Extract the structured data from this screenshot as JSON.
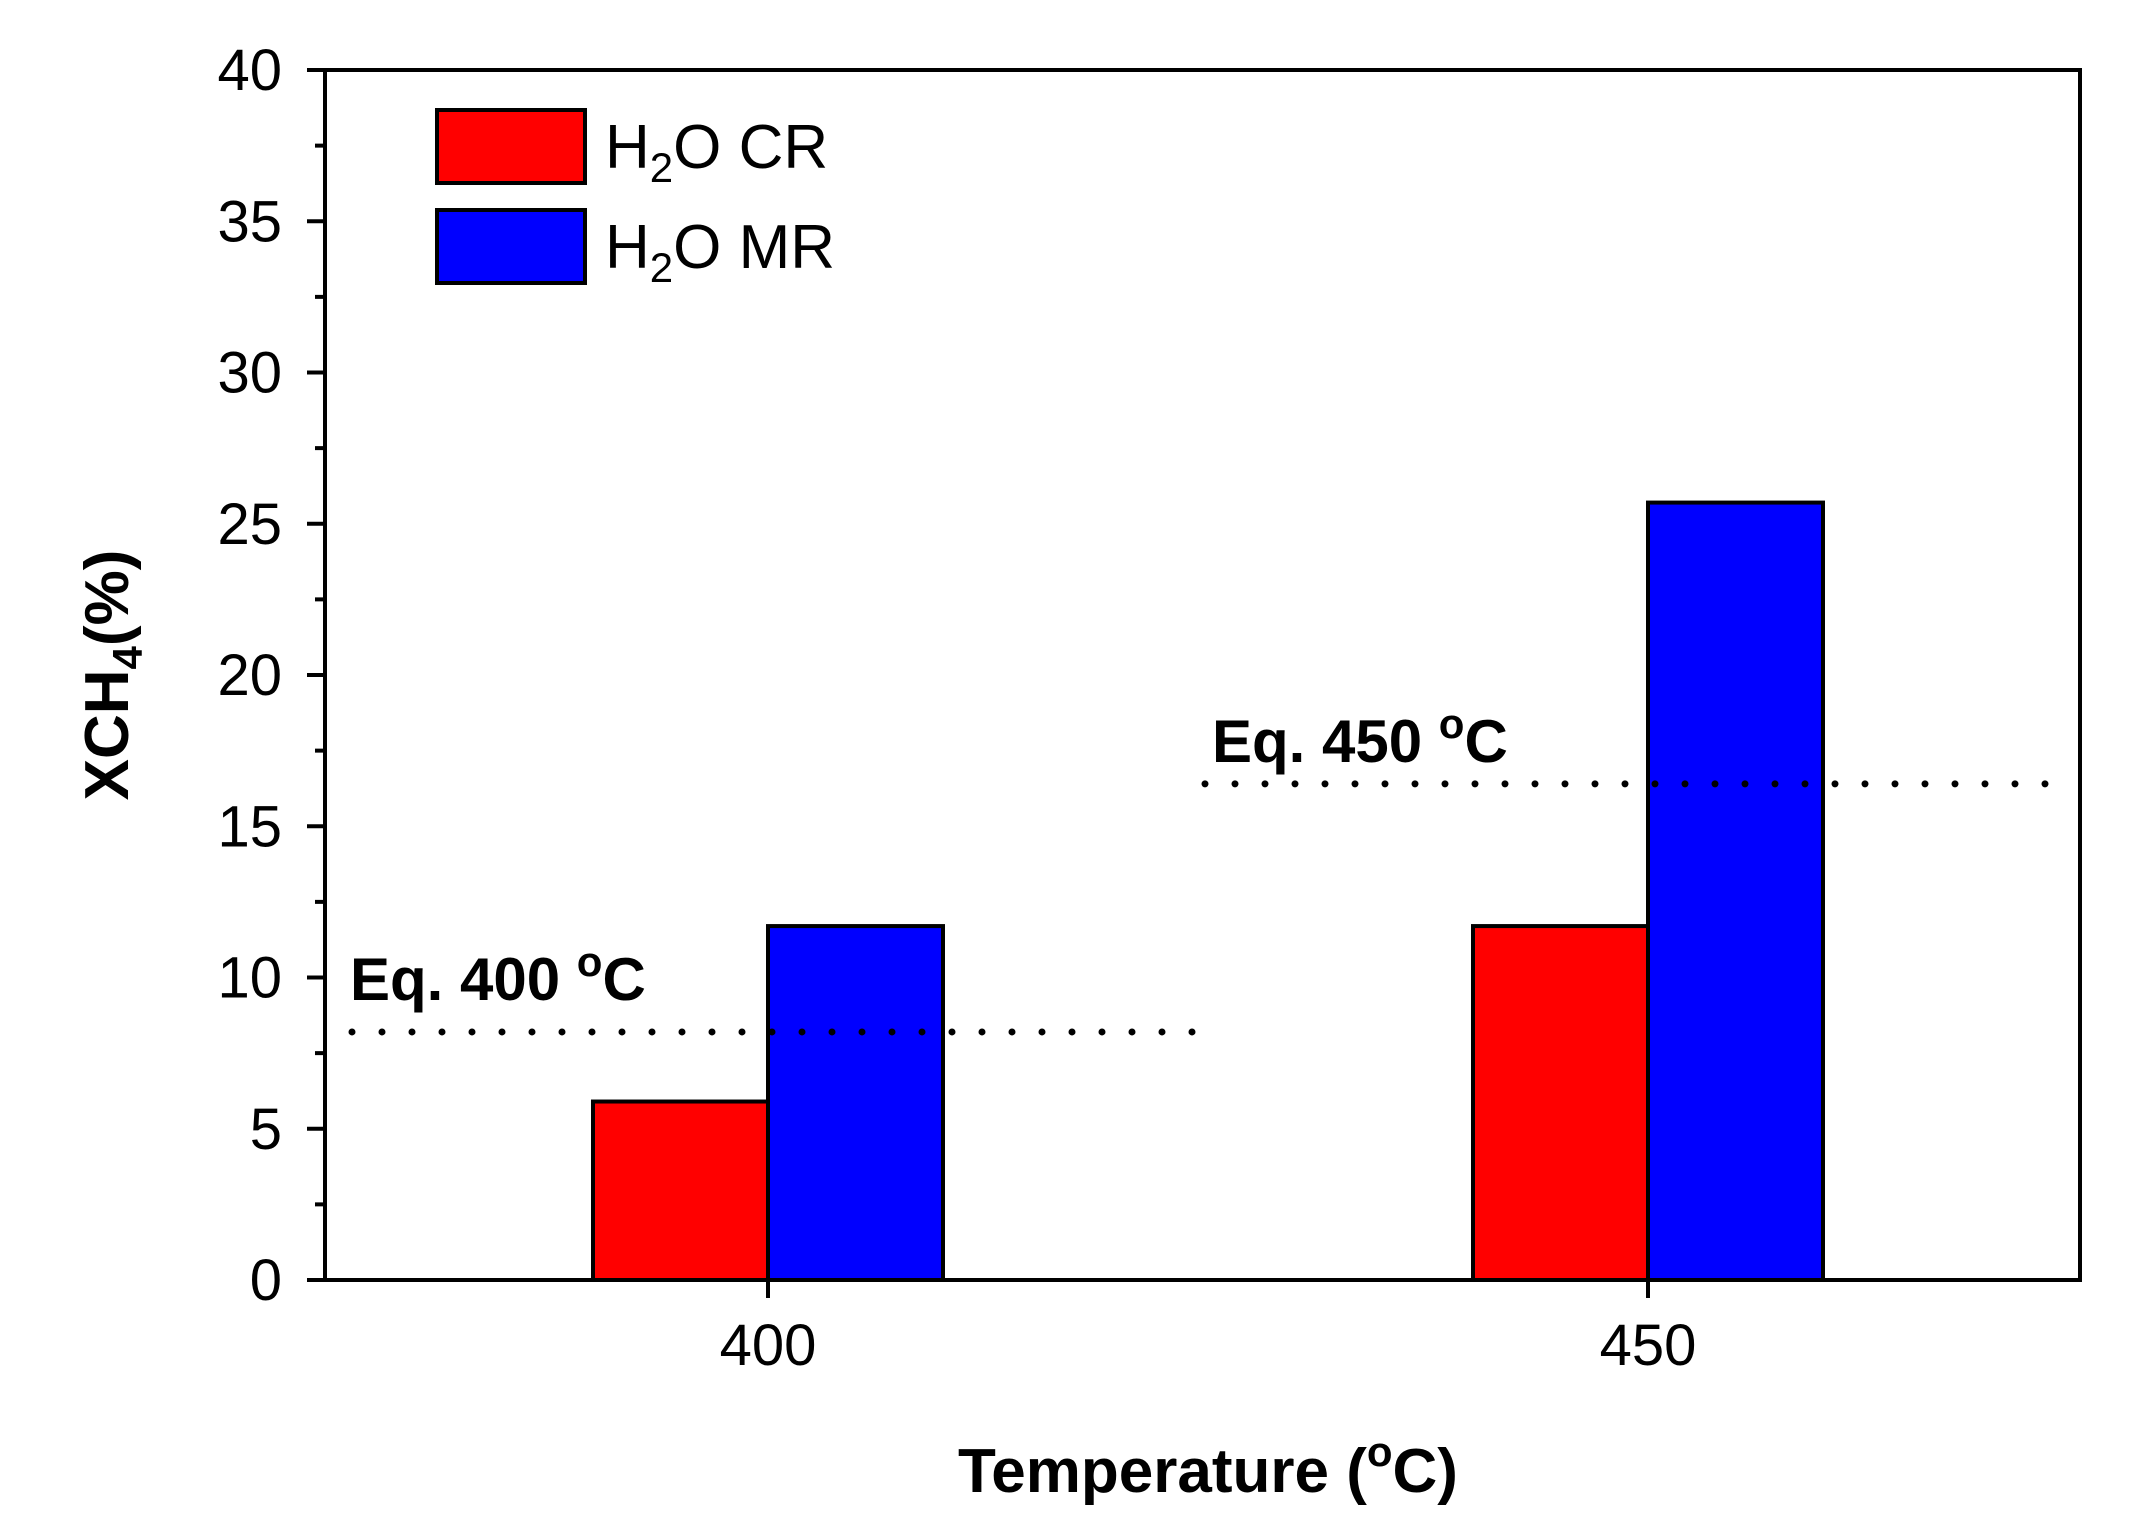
{
  "chart_data": {
    "type": "bar",
    "categories": [
      "400",
      "450"
    ],
    "series": [
      {
        "name": "H2O CR",
        "values": [
          5.9,
          11.7
        ],
        "color": "#ff0000"
      },
      {
        "name": "H2O MR",
        "values": [
          11.7,
          25.7
        ],
        "color": "#0000ff"
      }
    ],
    "xlabel": "Temperature (oC)",
    "ylabel": "XCH4(%)",
    "ylim": [
      0,
      40
    ],
    "yticks": [
      0,
      5,
      10,
      15,
      20,
      25,
      30,
      35,
      40
    ],
    "legend_position": "top-left",
    "annotations": [
      {
        "label": "Eq. 400 oC",
        "value": 8.2,
        "style": "dotted"
      },
      {
        "label": "Eq. 450 oC",
        "value": 16.4,
        "style": "dotted"
      }
    ]
  },
  "text": {
    "ylabel_main": "XCH",
    "ylabel_sub": "4",
    "ylabel_tail": "(%)",
    "xlabel_main": "Temperature (",
    "xlabel_sup": "o",
    "xlabel_tail": "C)",
    "legend": [
      {
        "pre": "H",
        "sub": "2",
        "post": "O CR"
      },
      {
        "pre": "H",
        "sub": "2",
        "post": "O MR"
      }
    ],
    "annot": [
      {
        "main": "Eq. 400 ",
        "sup": "o",
        "tail": "C"
      },
      {
        "main": "Eq. 450 ",
        "sup": "o",
        "tail": "C"
      }
    ]
  }
}
